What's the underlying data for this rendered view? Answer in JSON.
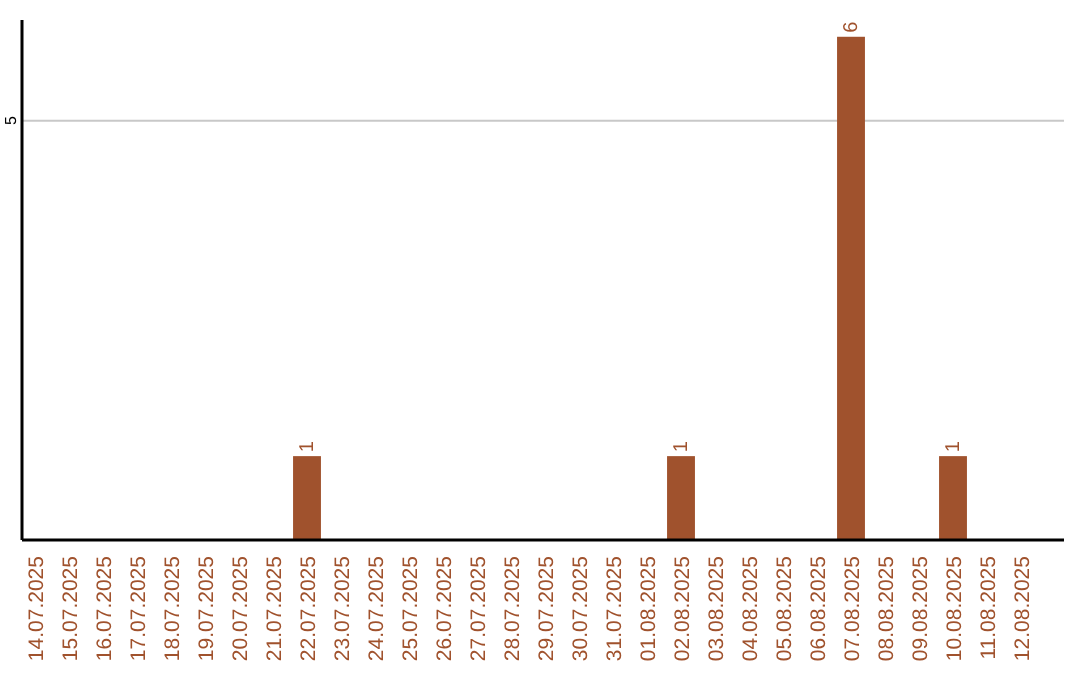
{
  "chart_data": {
    "type": "bar",
    "categories": [
      "14.07.2025",
      "15.07.2025",
      "16.07.2025",
      "17.07.2025",
      "18.07.2025",
      "19.07.2025",
      "20.07.2025",
      "21.07.2025",
      "22.07.2025",
      "23.07.2025",
      "24.07.2025",
      "25.07.2025",
      "26.07.2025",
      "27.07.2025",
      "28.07.2025",
      "29.07.2025",
      "30.07.2025",
      "31.07.2025",
      "01.08.2025",
      "02.08.2025",
      "03.08.2025",
      "04.08.2025",
      "05.08.2025",
      "06.08.2025",
      "07.08.2025",
      "08.08.2025",
      "09.08.2025",
      "10.08.2025",
      "11.08.2025",
      "12.08.2025"
    ],
    "values": [
      0,
      0,
      0,
      0,
      0,
      0,
      0,
      0,
      1,
      0,
      0,
      0,
      0,
      0,
      0,
      0,
      0,
      0,
      0,
      1,
      0,
      0,
      0,
      0,
      6,
      0,
      0,
      1,
      0,
      0
    ],
    "value_labels": [
      null,
      null,
      null,
      null,
      null,
      null,
      null,
      null,
      "1",
      null,
      null,
      null,
      null,
      null,
      null,
      null,
      null,
      null,
      null,
      "1",
      null,
      null,
      null,
      null,
      "6",
      null,
      null,
      "1",
      null,
      null
    ],
    "color": "#a0522d",
    "ylim": [
      0,
      6.2
    ],
    "yticks": [
      5
    ],
    "grid": "y"
  }
}
